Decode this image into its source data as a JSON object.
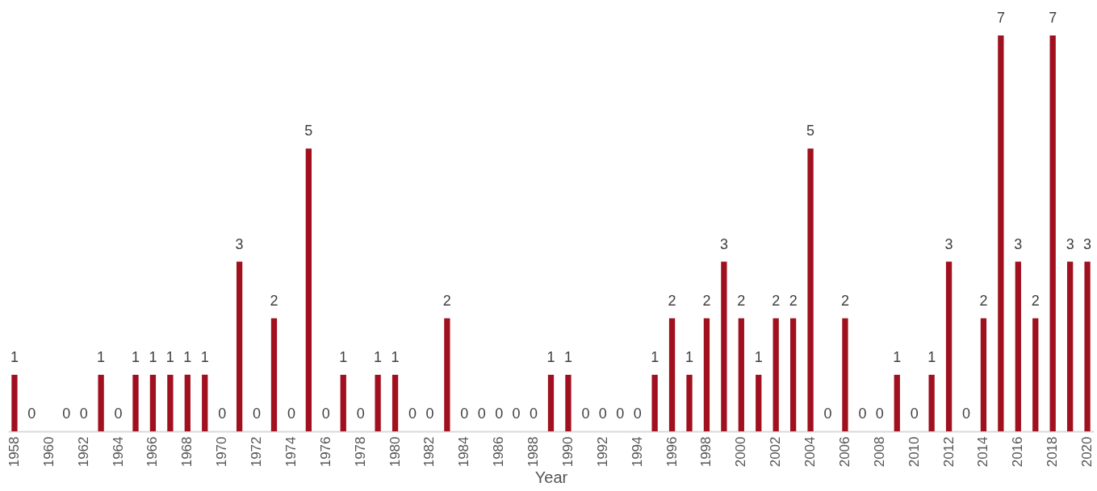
{
  "chart_data": {
    "type": "bar",
    "xlabel": "Year",
    "categories": [
      "1958",
      null,
      "1960",
      null,
      "1962",
      null,
      "1964",
      null,
      "1966",
      null,
      "1968",
      null,
      "1970",
      null,
      "1972",
      null,
      "1974",
      null,
      "1976",
      null,
      "1978",
      null,
      "1980",
      null,
      "1982",
      null,
      "1984",
      null,
      "1986",
      null,
      "1988",
      null,
      "1990",
      null,
      "1992",
      null,
      "1994",
      null,
      "1996",
      null,
      "1998",
      null,
      "2000",
      null,
      "2002",
      null,
      "2004",
      null,
      "2006",
      null,
      "2008",
      null,
      "2010",
      null,
      "2012",
      null,
      "2014",
      null,
      "2016",
      null,
      "2018",
      null,
      "2020"
    ],
    "values": [
      1,
      0,
      null,
      0,
      0,
      1,
      0,
      1,
      1,
      1,
      1,
      1,
      0,
      3,
      0,
      2,
      0,
      5,
      0,
      1,
      0,
      1,
      1,
      0,
      0,
      2,
      0,
      0,
      0,
      0,
      0,
      1,
      1,
      0,
      0,
      0,
      0,
      1,
      2,
      1,
      2,
      3,
      2,
      1,
      2,
      2,
      5,
      0,
      2,
      0,
      0,
      1,
      0,
      1,
      3,
      0,
      2,
      7,
      3,
      2,
      7,
      3,
      3
    ],
    "color": "#a0101e",
    "data_labels": true,
    "grid": false
  }
}
